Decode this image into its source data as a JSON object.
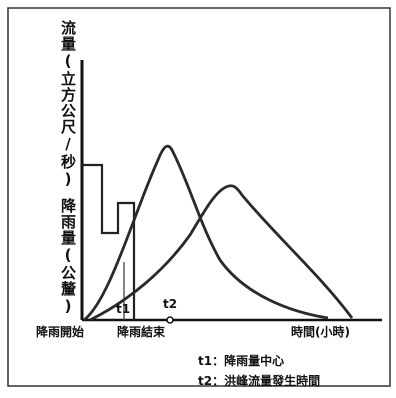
{
  "diagram": {
    "y_label_flow": "流量(立方公尺/秒)",
    "y_label_rain": "降雨量(公釐)",
    "x_label_start": "降雨開始",
    "x_label_end": "降雨結束",
    "x_label_time": "時間(小時)",
    "t1_label": "t1",
    "t2_label": "t2",
    "legend": [
      {
        "key": "t1：",
        "text": "降雨量中心"
      },
      {
        "key": "t2：",
        "text": "洪峰流量發生時間"
      }
    ]
  }
}
